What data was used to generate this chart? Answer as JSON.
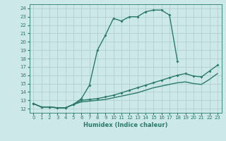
{
  "xlabel": "Humidex (Indice chaleur)",
  "background_color": "#cce8e8",
  "grid_color": "#aacccc",
  "line_color": "#2a7a6a",
  "xlim": [
    -0.5,
    23.5
  ],
  "ylim": [
    11.5,
    24.5
  ],
  "yticks": [
    12,
    13,
    14,
    15,
    16,
    17,
    18,
    19,
    20,
    21,
    22,
    23,
    24
  ],
  "xticks": [
    0,
    1,
    2,
    3,
    4,
    5,
    6,
    7,
    8,
    9,
    10,
    11,
    12,
    13,
    14,
    15,
    16,
    17,
    18,
    19,
    20,
    21,
    22,
    23
  ],
  "curve1_x": [
    0,
    1,
    2,
    3,
    4,
    5,
    6,
    7,
    8,
    9,
    10,
    11,
    12,
    13,
    14,
    15,
    16,
    17,
    18
  ],
  "curve1_y": [
    12.6,
    12.2,
    12.2,
    12.1,
    12.1,
    12.5,
    13.2,
    14.8,
    19.0,
    20.8,
    22.8,
    22.5,
    23.0,
    23.0,
    23.6,
    23.8,
    23.8,
    23.2,
    17.7
  ],
  "curve2_x": [
    0,
    1,
    2,
    3,
    4,
    5,
    6,
    7,
    8,
    9,
    10,
    11,
    12,
    13,
    14,
    15,
    16,
    17,
    18,
    19,
    20,
    21,
    22,
    23
  ],
  "curve2_y": [
    12.6,
    12.2,
    12.2,
    12.1,
    12.1,
    12.5,
    13.0,
    13.1,
    13.2,
    13.4,
    13.6,
    13.9,
    14.2,
    14.5,
    14.8,
    15.1,
    15.4,
    15.7,
    16.0,
    16.2,
    15.9,
    15.8,
    16.5,
    17.2
  ],
  "curve3_x": [
    0,
    1,
    2,
    3,
    4,
    5,
    6,
    7,
    8,
    9,
    10,
    11,
    12,
    13,
    14,
    15,
    16,
    17,
    18,
    19,
    20,
    21,
    22,
    23
  ],
  "curve3_y": [
    12.6,
    12.2,
    12.2,
    12.1,
    12.1,
    12.5,
    12.8,
    12.9,
    13.0,
    13.1,
    13.3,
    13.5,
    13.7,
    13.9,
    14.2,
    14.5,
    14.7,
    14.9,
    15.1,
    15.2,
    15.0,
    14.9,
    15.5,
    16.2
  ]
}
